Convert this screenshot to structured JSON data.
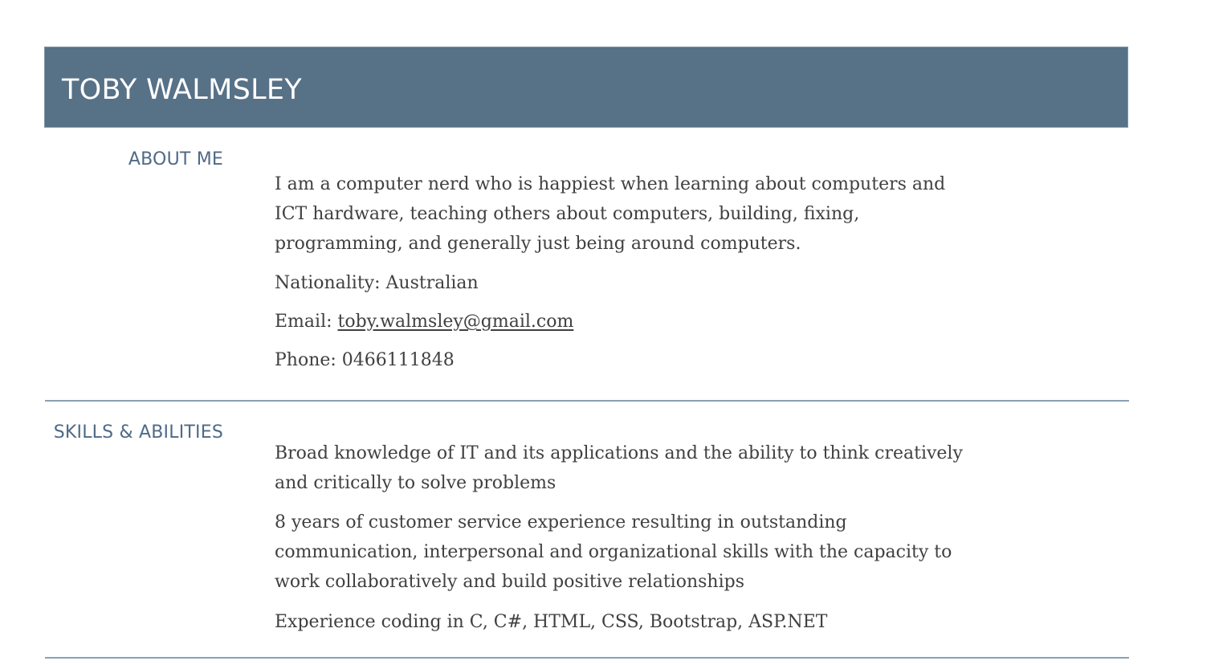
{
  "header": {
    "name": "TOBY WALMSLEY",
    "background_color": "#577187"
  },
  "about": {
    "heading": "ABOUT ME",
    "summary": "I am a computer nerd who is happiest when learning about computers and ICT hardware, teaching others about computers, building, fixing, programming, and generally just being around computers.",
    "nationality": "Nationality: Australian",
    "email_label": "Email: ",
    "email": "toby.walmsley@gmail.com",
    "phone": "Phone: 0466111848"
  },
  "skills": {
    "heading": "SKILLS & ABILITIES",
    "items": [
      "Broad knowledge of IT and its applications and the ability to think creatively and critically to solve problems",
      "8 years of customer service experience resulting in outstanding communication, interpersonal and organizational skills with the capacity to work collaboratively and build positive relationships",
      "Experience coding in C, C#, HTML, CSS, Bootstrap, ASP.NET"
    ]
  },
  "colors": {
    "heading": "#4f6a86",
    "text": "#404040",
    "rule": "#8aa0b5"
  }
}
